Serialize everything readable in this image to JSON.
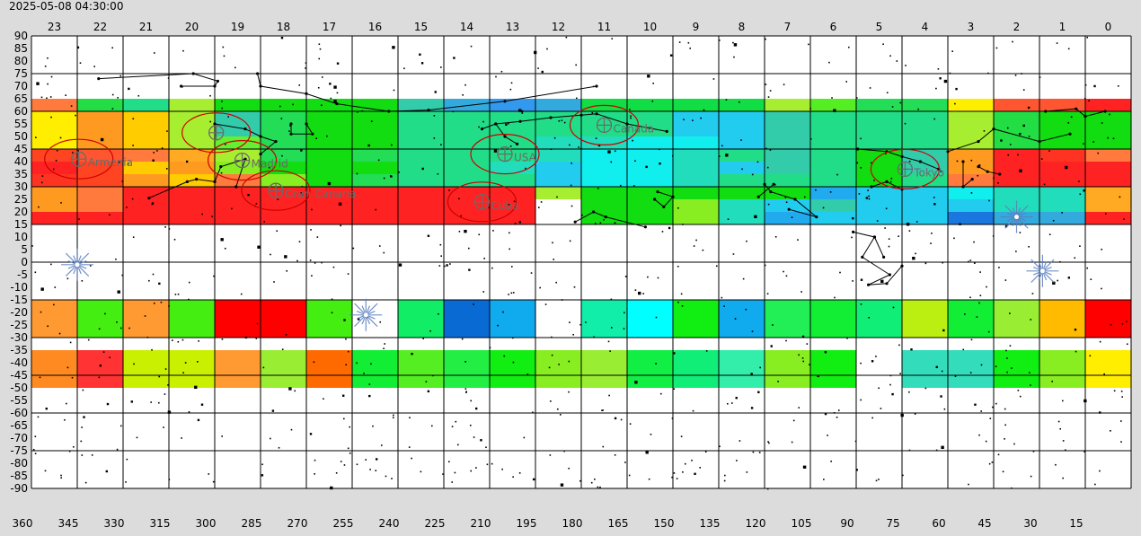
{
  "timestamp": "2025-05-08 04:30:00",
  "colors": {
    "page_bg": "#dcdcdc",
    "grid": "#000000",
    "marker": "#cc0000",
    "label": "#6a6a6a",
    "sparkle": "#5a7fc0"
  },
  "chart_data": {
    "type": "heatmap",
    "title": "",
    "xlabel": "",
    "ylabel": "",
    "x_axis_top": {
      "label": "",
      "ticks": [
        "23",
        "22",
        "21",
        "20",
        "19",
        "18",
        "17",
        "16",
        "15",
        "14",
        "13",
        "12",
        "11",
        "10",
        "9",
        "8",
        "7",
        "6",
        "5",
        "4",
        "3",
        "2",
        "1",
        "0"
      ]
    },
    "x_axis_bottom": {
      "label": "",
      "range": [
        360,
        0
      ],
      "ticks": [
        360,
        345,
        330,
        315,
        300,
        285,
        270,
        255,
        240,
        225,
        210,
        195,
        180,
        165,
        150,
        135,
        120,
        105,
        90,
        75,
        60,
        45,
        30,
        15
      ]
    },
    "y_axis": {
      "label": "",
      "range": [
        90,
        -90
      ],
      "ticks": [
        90,
        85,
        80,
        75,
        70,
        65,
        60,
        55,
        50,
        45,
        40,
        35,
        30,
        25,
        20,
        15,
        10,
        5,
        0,
        -5,
        -10,
        -15,
        -20,
        -25,
        -30,
        -35,
        -40,
        -45,
        -50,
        -55,
        -60,
        -65,
        -70,
        -75,
        -80,
        -85,
        -90
      ]
    },
    "bands": [
      {
        "lat_top": 65,
        "lat_bottom": 60,
        "cells": [
          "#ff7a3c",
          "#22dd44",
          "#22dd88",
          "#a8ee30",
          "#11dd11",
          "#11dd11",
          "#11dd11",
          "#11dd11",
          "#33ccaa",
          "#33aadd",
          "#3399ee",
          "#33aadd",
          "#11dd44",
          "#11dd44",
          "#11dd44",
          "#11dd44",
          "#a8ee30",
          "#55ee22",
          "#22dd55",
          "#22dd55",
          "#ffee00",
          "#ff5530",
          "#ff5530",
          "#ff2222"
        ]
      },
      {
        "lat_top": 60,
        "lat_bottom": 50,
        "cells": [
          "#ffee00",
          "#ff9a20",
          "#ffcc00",
          "#a8ee30",
          "#33ccaa",
          "#22dd55",
          "#11dd11",
          "#11dd11",
          "#22dd88",
          "#22dd88",
          "#22dd88",
          "#22dd88",
          "#22dd88",
          "#22dd88",
          "#22ccee",
          "#22ccee",
          "#33ccaa",
          "#22dd88",
          "#22dd88",
          "#22dd88",
          "#a8ee30",
          "#22dd44",
          "#11dd11",
          "#11dd11"
        ]
      },
      {
        "lat_top": 50,
        "lat_bottom": 45,
        "cells": [
          "#ffee00",
          "#ff9a20",
          "#ffcc00",
          "#a8ee30",
          "#66ee33",
          "#22dd55",
          "#11dd11",
          "#11dd11",
          "#22dd88",
          "#22dd88",
          "#22dd88",
          "#22ddbb",
          "#22ddbb",
          "#11eeee",
          "#11eeee",
          "#22ccee",
          "#33ccaa",
          "#22dd88",
          "#22dd88",
          "#22dd88",
          "#a8ee30",
          "#22dd44",
          "#11dd11",
          "#11dd11"
        ]
      },
      {
        "lat_top": 45,
        "lat_bottom": 40,
        "cells": [
          "#ff4422",
          "#ff5530",
          "#ff7a3c",
          "#ffaa22",
          "#a8ee30",
          "#22dd55",
          "#11dd11",
          "#22dd55",
          "#22dd88",
          "#22dd88",
          "#22dd88",
          "#22ddbb",
          "#11eeee",
          "#11eeee",
          "#22ddbb",
          "#22dd88",
          "#33ccaa",
          "#22dd88",
          "#11dd11",
          "#33ccaa",
          "#ff9a20",
          "#ff2222",
          "#ff3322",
          "#ff7a3c"
        ]
      },
      {
        "lat_top": 40,
        "lat_bottom": 35,
        "cells": [
          "#ff2222",
          "#ff4422",
          "#ffcc00",
          "#ff9a20",
          "#88ee22",
          "#11dd11",
          "#11dd11",
          "#11dd11",
          "#22dd88",
          "#22dd88",
          "#22ddbb",
          "#22ccee",
          "#11eeee",
          "#11eeee",
          "#22ddbb",
          "#22ccee",
          "#33ccaa",
          "#22dd88",
          "#11dd11",
          "#33ccaa",
          "#ff9a20",
          "#ff2222",
          "#ff2222",
          "#ff2222"
        ]
      },
      {
        "lat_top": 35,
        "lat_bottom": 30,
        "cells": [
          "#ff3322",
          "#ff4422",
          "#ff9a20",
          "#ffcc00",
          "#ff7a3c",
          "#88ee22",
          "#11dd11",
          "#22dd55",
          "#22dd88",
          "#22dd88",
          "#22dd88",
          "#22ccee",
          "#11eeee",
          "#11eeee",
          "#22ddbb",
          "#22dd88",
          "#22dd88",
          "#22dd88",
          "#11dd11",
          "#22dd88",
          "#ff7a3c",
          "#ff2222",
          "#ff2222",
          "#ff2222"
        ]
      },
      {
        "lat_top": 30,
        "lat_bottom": 25,
        "cells": [
          "#ff9a20",
          "#ff7a3c",
          "#ff2222",
          "#ff2222",
          "#ff2222",
          "#ff2222",
          "#ff2222",
          "#ff2222",
          "#ff2222",
          "#ff2222",
          "#ff2222",
          "#a8ee30",
          "#11dd11",
          "#11dd11",
          "#11dd11",
          "#11dd11",
          "#11dd11",
          "#22aaee",
          "#22ccee",
          "#22ccee",
          "#11eeee",
          "#22ddbb",
          "#22ddbb",
          "#ffaa22"
        ]
      },
      {
        "lat_top": 25,
        "lat_bottom": 20,
        "cells": [
          "#ff9a20",
          "#ff7a3c",
          "#ff2222",
          "#ff2222",
          "#ff2222",
          "#ff2222",
          "#ff2222",
          "#ff2222",
          "#ff2222",
          "#ff2222",
          "#ff2222",
          "#ffffff",
          "#11dd11",
          "#11dd11",
          "#88ee22",
          "#22ddbb",
          "#22ccee",
          "#33ccaa",
          "#22ccee",
          "#22ccee",
          "#22ccee",
          "#22ddbb",
          "#22ddbb",
          "#ffaa22"
        ]
      },
      {
        "lat_top": 20,
        "lat_bottom": 15,
        "cells": [
          "#ff2222",
          "#ff2222",
          "#ff2222",
          "#ff2222",
          "#ff2222",
          "#ff2222",
          "#ff2222",
          "#ff2222",
          "#ff2222",
          "#ff2222",
          "#ff2222",
          "#ffffff",
          "#11dd11",
          "#11dd11",
          "#88ee22",
          "#22ddbb",
          "#22aaee",
          "#22ccee",
          "#22ccee",
          "#22ccee",
          "#1a77dd",
          "#33aadd",
          "#33aadd",
          "#ff2222"
        ]
      },
      {
        "lat_top": -15,
        "lat_bottom": -30,
        "cells": [
          "#ff9a33",
          "#44ee11",
          "#ff9a33",
          "#44ee11",
          "#ff0000",
          "#ff0000",
          "#44ee11",
          "#ffffff",
          "#11ee66",
          "#0a6ad4",
          "#10aaee",
          "#ffffff",
          "#10eeaa",
          "#00ffff",
          "#11ee11",
          "#10aaee",
          "#22ee55",
          "#11ee33",
          "#11ee77",
          "#bbee11",
          "#11ee33",
          "#99ee33",
          "#ffbb00",
          "#ff0000"
        ]
      },
      {
        "lat_top": -35,
        "lat_bottom": -45,
        "cells": [
          "#ff8a22",
          "#ff3333",
          "#c8f000",
          "#c8f000",
          "#ff9a33",
          "#99ee33",
          "#ff6a00",
          "#11ee33",
          "#55ee22",
          "#22ee44",
          "#11ee11",
          "#88ee22",
          "#99ee33",
          "#11ee44",
          "#11ee77",
          "#33eeaa",
          "#88ee22",
          "#11ee11",
          "#ffffff",
          "#33ddbb",
          "#33ddbb",
          "#11ee11",
          "#88ee22",
          "#ffee00"
        ]
      },
      {
        "lat_top": -45,
        "lat_bottom": -50,
        "cells": [
          "#ff8a22",
          "#ff3333",
          "#c8f000",
          "#c8f000",
          "#ff9a33",
          "#99ee33",
          "#ff6a00",
          "#11ee33",
          "#55ee22",
          "#22ee44",
          "#11ee11",
          "#88ee22",
          "#99ee33",
          "#11ee44",
          "#11ee77",
          "#33eeaa",
          "#88ee22",
          "#11ee11",
          "#ffffff",
          "#33ddbb",
          "#33ddbb",
          "#11ee11",
          "#88ee22",
          "#ffee00"
        ]
      }
    ],
    "markers": [
      {
        "label": "Armenia",
        "lon": 344.5,
        "lat": 41.0
      },
      {
        "label": "",
        "lon": 299.5,
        "lat": 51.5
      },
      {
        "label": "Madrid",
        "lon": 291.0,
        "lat": 40.5
      },
      {
        "label": "Gran Canaria",
        "lon": 280.0,
        "lat": 28.5
      },
      {
        "label": "USA",
        "lon": 205.0,
        "lat": 43.0
      },
      {
        "label": "Cuba",
        "lon": 212.5,
        "lat": 24.0
      },
      {
        "label": "Canada",
        "lon": 172.5,
        "lat": 54.5
      },
      {
        "label": "Tokyo",
        "lon": 74.0,
        "lat": 37.0
      }
    ],
    "sparkles": [
      {
        "lon": 345.0,
        "lat": -1.0
      },
      {
        "lon": 250.5,
        "lat": -21.0
      },
      {
        "lon": 37.5,
        "lat": 18.0
      },
      {
        "lon": 29.0,
        "lat": -3.5
      }
    ],
    "constellations": [
      [
        [
          338.0,
          73.0
        ],
        [
          307.0,
          75.0
        ],
        [
          299.0,
          72.0
        ],
        [
          300.0,
          70.0
        ],
        [
          311.0,
          70.0
        ]
      ],
      [
        [
          286.0,
          75.0
        ],
        [
          285.0,
          70.0
        ],
        [
          270.0,
          67.0
        ],
        [
          260.0,
          63.0
        ],
        [
          243.0,
          60.0
        ],
        [
          230.0,
          60.5
        ],
        [
          205.0,
          64.0
        ],
        [
          175.0,
          70.0
        ]
      ],
      [
        [
          300.0,
          55.0
        ],
        [
          290.0,
          53.0
        ],
        [
          285.0,
          50.0
        ],
        [
          280.0,
          48.0
        ],
        [
          285.0,
          43.0
        ]
      ],
      [
        [
          300.0,
          32.0
        ],
        [
          298.0,
          38.0
        ],
        [
          290.0,
          41.0
        ],
        [
          293.0,
          30.0
        ]
      ],
      [
        [
          321.5,
          25.5
        ],
        [
          309.0,
          32.0
        ],
        [
          306.0,
          33.0
        ],
        [
          300.0,
          32.0
        ]
      ],
      [
        [
          270.0,
          55.0
        ],
        [
          268.0,
          51.0
        ],
        [
          275.0,
          51.0
        ],
        [
          275.0,
          55.0
        ]
      ],
      [
        [
          212.5,
          53.0
        ],
        [
          208.0,
          55.0
        ],
        [
          200.0,
          56.0
        ],
        [
          190.0,
          57.5
        ],
        [
          180.0,
          58.5
        ],
        [
          175.0,
          59.0
        ],
        [
          165.0,
          55.0
        ],
        [
          152.0,
          52.0
        ]
      ],
      [
        [
          208.0,
          55.0
        ],
        [
          205.0,
          50.0
        ],
        [
          201.0,
          47.0
        ]
      ],
      [
        [
          89.5,
          45.0
        ],
        [
          80.0,
          44.0
        ],
        [
          75.0,
          42.0
        ],
        [
          69.0,
          40.0
        ],
        [
          63.0,
          37.0
        ]
      ],
      [
        [
          85.0,
          30.0
        ],
        [
          80.0,
          32.0
        ],
        [
          75.0,
          29.0
        ]
      ],
      [
        [
          60.0,
          44.0
        ],
        [
          50.0,
          48.0
        ],
        [
          45.0,
          53.0
        ],
        [
          30.0,
          48.0
        ],
        [
          20.0,
          51.0
        ]
      ],
      [
        [
          55.0,
          40.0
        ],
        [
          55.0,
          30.0
        ],
        [
          52.0,
          33.0
        ]
      ],
      [
        [
          28.0,
          60.0
        ],
        [
          18.0,
          61.0
        ],
        [
          15.0,
          58.0
        ],
        [
          8.5,
          60.0
        ]
      ],
      [
        [
          50.0,
          38.0
        ],
        [
          47.0,
          36.0
        ],
        [
          43.0,
          35.0
        ]
      ],
      [
        [
          120.0,
          31.0
        ],
        [
          118.0,
          28.0
        ],
        [
          110.0,
          25.0
        ],
        [
          103.0,
          18.0
        ],
        [
          112.0,
          21.0
        ]
      ],
      [
        [
          117.0,
          31.0
        ],
        [
          122.0,
          26.0
        ]
      ],
      [
        [
          182.0,
          16.0
        ],
        [
          176.0,
          20.0
        ],
        [
          172.0,
          18.0
        ],
        [
          159.0,
          14.0
        ]
      ],
      [
        [
          156.0,
          25.0
        ],
        [
          153.0,
          22.0
        ],
        [
          150.0,
          26.0
        ],
        [
          155.0,
          28.0
        ]
      ],
      [
        [
          91.0,
          12.0
        ],
        [
          84.0,
          10.0
        ],
        [
          88.0,
          2.0
        ],
        [
          79.0,
          -5.0
        ],
        [
          86.0,
          -9.0
        ],
        [
          80.0,
          -8.5
        ],
        [
          75.0,
          -1.5
        ]
      ],
      [
        [
          84.0,
          10.0
        ],
        [
          81.0,
          2.0
        ]
      ]
    ]
  }
}
